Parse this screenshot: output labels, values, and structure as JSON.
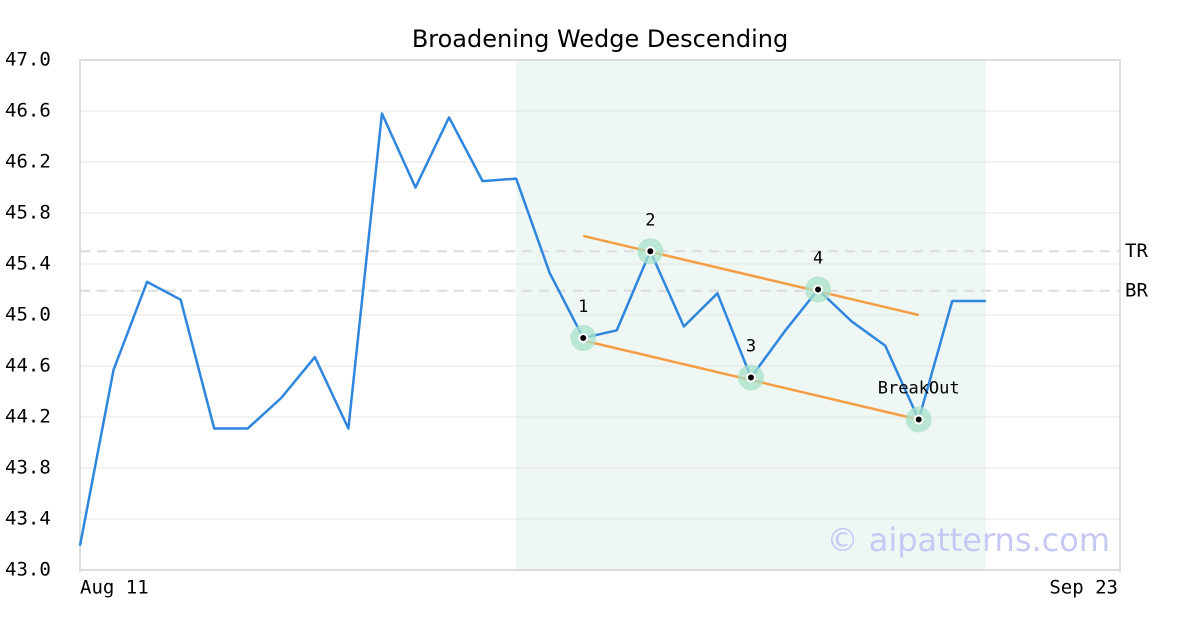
{
  "chart_data": {
    "type": "line",
    "title": "Broadening Wedge Descending",
    "x": [
      0,
      1,
      2,
      3,
      4,
      5,
      6,
      7,
      8,
      9,
      10,
      11,
      12,
      13,
      14,
      15,
      16,
      17,
      18,
      19,
      20,
      21,
      22,
      23,
      24,
      25,
      26,
      27
    ],
    "values": [
      43.19,
      44.57,
      45.26,
      45.12,
      44.11,
      44.11,
      44.35,
      44.67,
      44.11,
      46.58,
      46.0,
      46.55,
      46.05,
      46.07,
      45.33,
      44.82,
      44.88,
      45.5,
      44.91,
      45.17,
      44.51,
      44.87,
      45.2,
      44.95,
      44.76,
      44.18,
      45.11,
      45.11
    ],
    "color": "#2e86de",
    "xlim": [
      0,
      31
    ],
    "xticks": [
      {
        "value": 0,
        "label": "Aug 11"
      },
      {
        "value": 31,
        "label": "Sep 23"
      }
    ],
    "ylim": [
      43,
      47
    ],
    "yticks": [
      {
        "value": 43,
        "label": "43.0"
      },
      43.4,
      43.8,
      44.2,
      44.6,
      {
        "value": 45,
        "label": "45.0"
      },
      45.4,
      45.8,
      46.2,
      46.6,
      {
        "value": 47,
        "label": "47.0"
      }
    ],
    "grid": true,
    "shaded_range": [
      13,
      27
    ],
    "levels": [
      {
        "label": "TR",
        "value": 45.5
      },
      {
        "label": "BR",
        "value": 45.19
      }
    ],
    "trendlines": [
      {
        "x": [
          15,
          25
        ],
        "values": [
          45.62,
          45.0
        ]
      },
      {
        "x": [
          15,
          25
        ],
        "values": [
          44.8,
          44.18
        ]
      }
    ],
    "pivots": [
      {
        "label": "1",
        "x": 15,
        "value": 44.82
      },
      {
        "label": "2",
        "x": 17,
        "value": 45.5
      },
      {
        "label": "3",
        "x": 20,
        "value": 44.51
      },
      {
        "label": "4",
        "x": 22,
        "value": 45.2
      },
      {
        "label": "BreakOut",
        "x": 25,
        "value": 44.18
      }
    ],
    "watermark": "© aipatterns.com"
  }
}
